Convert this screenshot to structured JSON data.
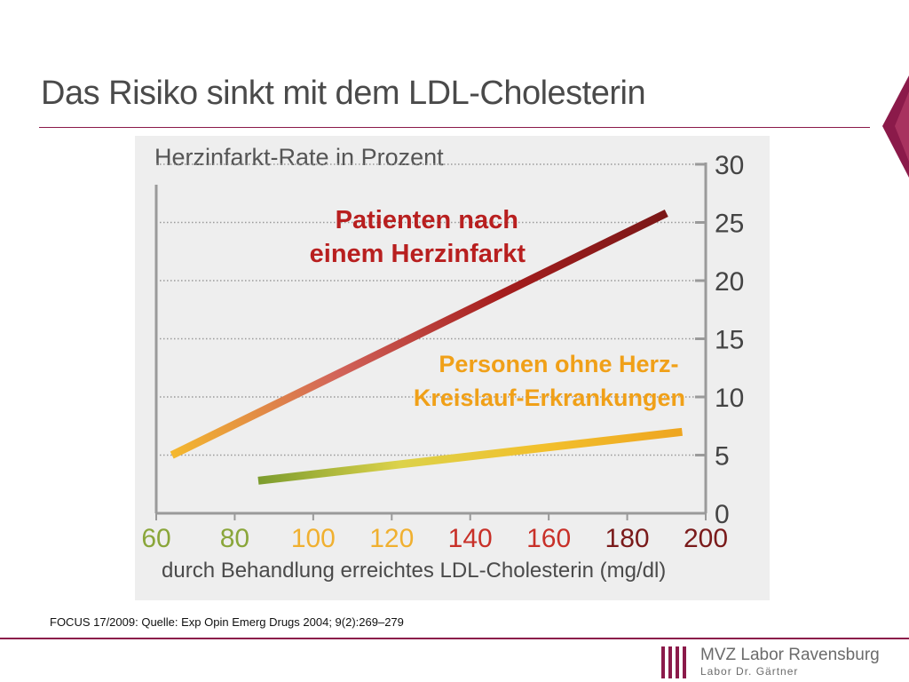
{
  "slide": {
    "title": "Das Risiko sinkt mit dem LDL-Cholesterin",
    "source": "FOCUS 17/2009: Quelle: Exp Opin Emerg Drugs 2004; 9(2):269–279",
    "accent_color": "#8b1a4a"
  },
  "logo": {
    "line1": "MVZ Labor Ravensburg",
    "line2": "Labor Dr. Gärtner"
  },
  "chart_data": {
    "type": "line",
    "title": "Herzinfarkt-Rate in Prozent",
    "xlabel": "durch Behandlung erreichtes LDL-Cholesterin (mg/dl)",
    "ylabel": "",
    "xlim": [
      60,
      200
    ],
    "ylim": [
      0,
      30
    ],
    "x_ticks": [
      60,
      80,
      100,
      120,
      140,
      160,
      180,
      200
    ],
    "x_tick_colors": [
      "#8aa63a",
      "#8aa63a",
      "#f0b030",
      "#f0b030",
      "#c83028",
      "#c83028",
      "#7a1a1a",
      "#7a1a1a"
    ],
    "y_ticks": [
      0,
      5,
      10,
      15,
      20,
      25,
      30
    ],
    "grid": true,
    "y_axis_side": "right",
    "background": "#eeeeee",
    "series": [
      {
        "name": "Patienten nach einem Herzinfarkt",
        "label_lines": [
          "Patienten nach",
          "einem Herzinfarkt"
        ],
        "label_color": "#b81f1f",
        "points": [
          [
            64,
            5.0
          ],
          [
            190,
            25.8
          ]
        ],
        "gradient": [
          "#f4b82e",
          "#d2645a",
          "#a51d1d",
          "#7a1717"
        ]
      },
      {
        "name": "Personen ohne Herz-Kreislauf-Erkrankungen",
        "label_lines": [
          "Personen ohne Herz-",
          "Kreislauf-Erkrankungen"
        ],
        "label_color": "#f0a018",
        "points": [
          [
            86,
            2.8
          ],
          [
            194,
            7.0
          ]
        ],
        "gradient": [
          "#7c9c2e",
          "#dcd24a",
          "#f2c02c",
          "#eea520"
        ]
      }
    ]
  }
}
